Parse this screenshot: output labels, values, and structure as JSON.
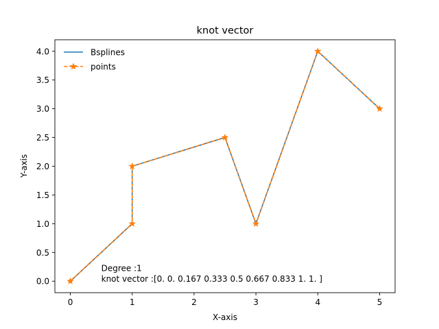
{
  "chart_data": {
    "type": "line",
    "title": "knot vector",
    "xlabel": "X-axis",
    "ylabel": "Y-axis",
    "xlim": [
      -0.25,
      5.25
    ],
    "ylim": [
      -0.2,
      4.2
    ],
    "xticks": [
      0,
      1,
      2,
      3,
      4,
      5
    ],
    "yticks": [
      0.0,
      0.5,
      1.0,
      1.5,
      2.0,
      2.5,
      3.0,
      3.5,
      4.0
    ],
    "xtick_labels": [
      "0",
      "1",
      "2",
      "3",
      "4",
      "5"
    ],
    "ytick_labels": [
      "0.0",
      "0.5",
      "1.0",
      "1.5",
      "2.0",
      "2.5",
      "3.0",
      "3.5",
      "4.0"
    ],
    "grid": false,
    "legend_position": "top-left",
    "series": [
      {
        "name": "Bsplines",
        "style": "solid",
        "marker": "none",
        "color": "#1f77b4",
        "x": [
          0,
          1,
          1,
          2.5,
          3,
          4,
          5
        ],
        "y": [
          0,
          1,
          2,
          2.5,
          1,
          4,
          3
        ]
      },
      {
        "name": "points",
        "style": "dashed",
        "marker": "star",
        "color": "#ff7f0e",
        "x": [
          0,
          1,
          1,
          2.5,
          3,
          4,
          5
        ],
        "y": [
          0,
          1,
          2,
          2.5,
          1,
          4,
          3
        ]
      }
    ],
    "annotations": [
      {
        "text": "Degree :1",
        "x": 0.5,
        "y": 0.19
      },
      {
        "text": "knot vector :[0.    0.    0.167 0.333 0.5   0.667 0.833 1.    1.   ]",
        "x": 0.5,
        "y": 0.0
      }
    ]
  }
}
